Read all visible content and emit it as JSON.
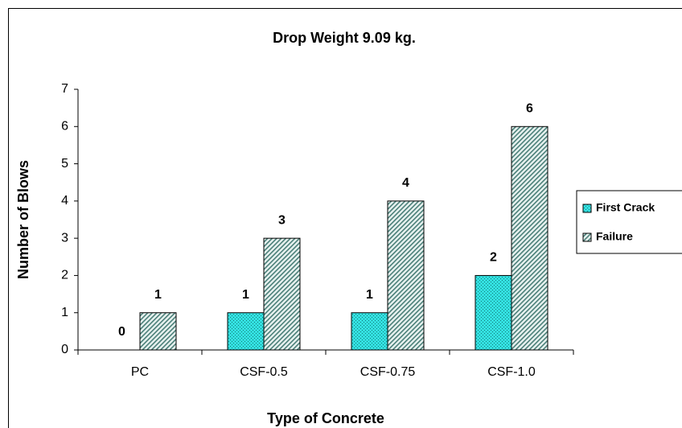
{
  "chart_data": {
    "type": "bar",
    "title": "Drop Weight 9.09 kg.",
    "x_label": "Type of Concrete",
    "y_label": "Number of Blows",
    "categories": [
      "PC",
      "CSF-0.5",
      "CSF-0.75",
      "CSF-1.0"
    ],
    "series": [
      {
        "name": "First Crack",
        "color": "#33e0e0",
        "pattern": "dots",
        "values": [
          0,
          1,
          1,
          2
        ]
      },
      {
        "name": "Failure",
        "color": "#4a7f78",
        "pattern": "diagonal",
        "values": [
          1,
          3,
          4,
          6
        ]
      }
    ],
    "ylim": [
      0,
      7
    ],
    "yticks": [
      0,
      1,
      2,
      3,
      4,
      5,
      6,
      7
    ],
    "grid": false,
    "legend": "right",
    "data_labels": true
  }
}
